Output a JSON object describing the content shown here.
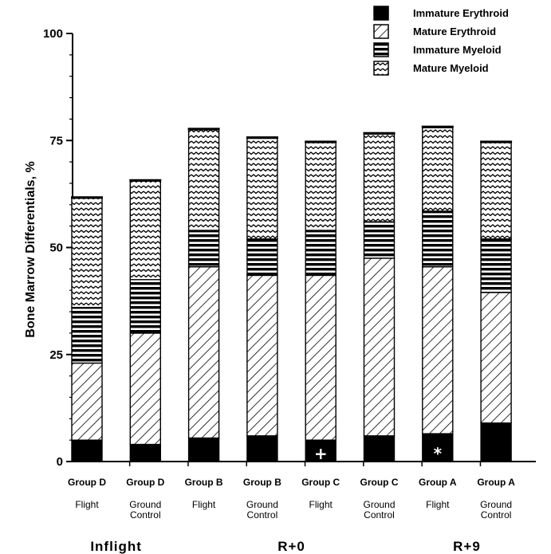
{
  "chart_data": {
    "type": "bar",
    "stacked": true,
    "ylabel": "Bone Marrow Differentials, %",
    "ylim": [
      0,
      100
    ],
    "yticks": [
      0,
      25,
      50,
      75,
      100
    ],
    "categories": [
      {
        "group": "Group D",
        "condition": [
          "Flight"
        ]
      },
      {
        "group": "Group D",
        "condition": [
          "Ground",
          "Control"
        ]
      },
      {
        "group": "Group B",
        "condition": [
          "Flight"
        ]
      },
      {
        "group": "Group B",
        "condition": [
          "Ground",
          "Control"
        ]
      },
      {
        "group": "Group C",
        "condition": [
          "Flight"
        ]
      },
      {
        "group": "Group C",
        "condition": [
          "Ground",
          "Control"
        ]
      },
      {
        "group": "Group A",
        "condition": [
          "Flight"
        ]
      },
      {
        "group": "Group A",
        "condition": [
          "Ground",
          "Control"
        ]
      }
    ],
    "series": [
      {
        "name": "Immature Erythroid",
        "pattern": "solid",
        "values": [
          5,
          4,
          5.5,
          6,
          5,
          6,
          6.5,
          9
        ]
      },
      {
        "name": "Mature Erythroid",
        "pattern": "diagonal",
        "values": [
          18,
          26,
          40,
          37.5,
          38.5,
          41.5,
          39,
          30.5
        ]
      },
      {
        "name": "Immature Myeloid",
        "pattern": "horizontal",
        "values": [
          13,
          12.5,
          8.5,
          8.5,
          10.5,
          8.5,
          13,
          12.5
        ]
      },
      {
        "name": "Mature Myeloid",
        "pattern": "wavy",
        "values": [
          25.5,
          23,
          23.5,
          23.5,
          20.5,
          20.5,
          19.5,
          22.5
        ]
      }
    ],
    "markers": [
      {
        "category_index": 4,
        "symbol": "+"
      },
      {
        "category_index": 6,
        "symbol": "*"
      }
    ],
    "category_groups": [
      {
        "label": "Inflight",
        "span": [
          0,
          1
        ]
      },
      {
        "label": "R+0",
        "span": [
          2,
          5
        ]
      },
      {
        "label": "R+9",
        "span": [
          6,
          7
        ]
      }
    ],
    "legend_position": "top-right",
    "colors": {
      "ink": "#000000",
      "paper": "#ffffff"
    }
  }
}
